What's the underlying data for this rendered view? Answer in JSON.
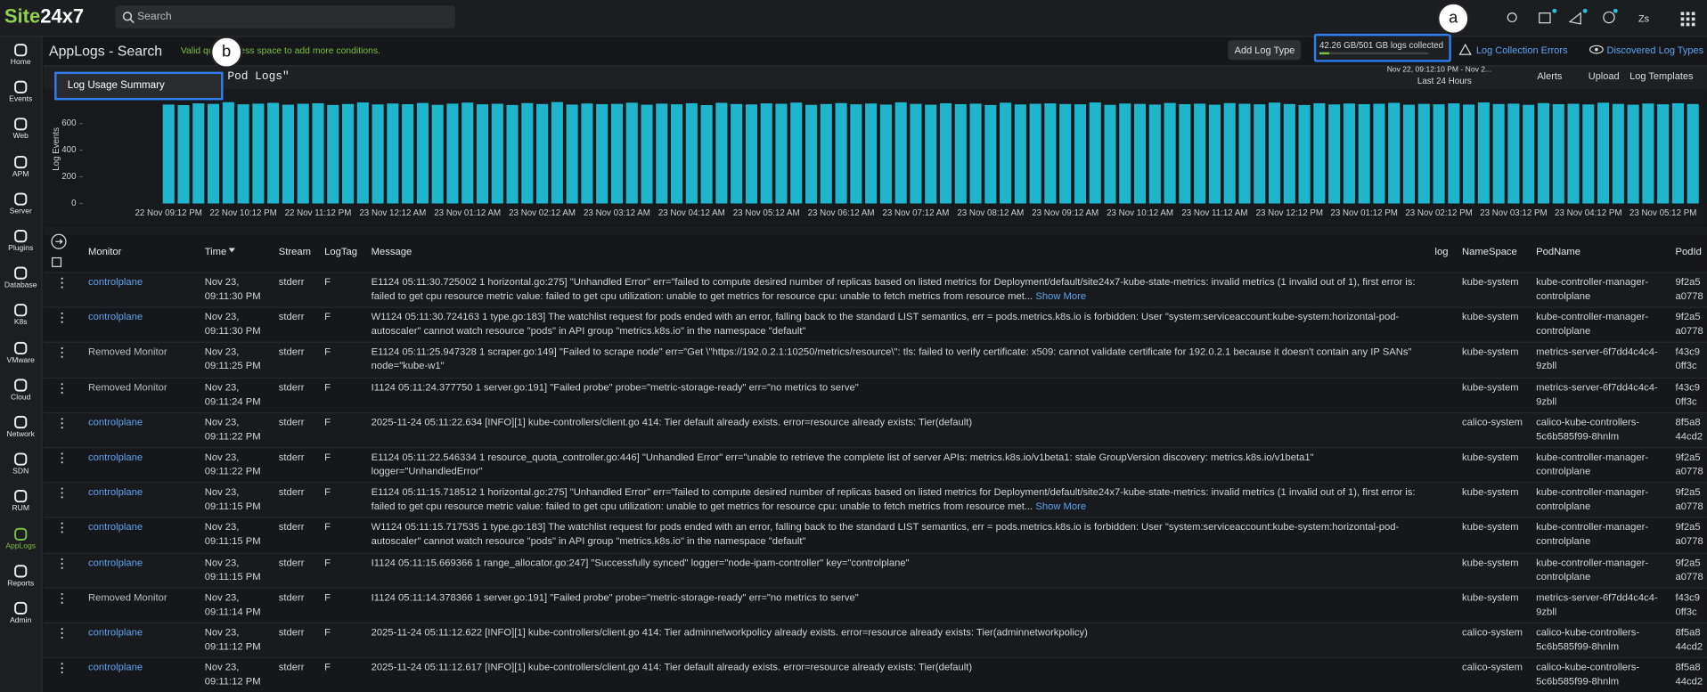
{
  "app": {
    "logo_a": "Site",
    "logo_b": "24x7",
    "search": "Search"
  },
  "sidebar": [
    "Home",
    "Events",
    "Web",
    "APM",
    "Server",
    "Plugins",
    "Database",
    "K8s",
    "VMware",
    "Cloud",
    "Network",
    "SDN",
    "RUM",
    "AppLogs",
    "Reports",
    "Admin"
  ],
  "header": {
    "title": "AppLogs - Search",
    "hint": "Valid query. Press space to add more conditions.",
    "add_log_type": "Add Log Type",
    "usage": "42.26 GB/501 GB logs collected",
    "errors": "Log Collection Errors",
    "discovered": "Discovered Log Types"
  },
  "query": {
    "text": "Pod Logs\"",
    "menu_item": "Log Usage Summary",
    "range": "Nov 22, 09:12:10 PM - Nov 2...",
    "preset": "Last 24 Hours",
    "alerts": "Alerts",
    "upload": "Upload",
    "templates": "Log Templates"
  },
  "callouts": [
    "a",
    "b"
  ],
  "chart_data": {
    "type": "bar",
    "y_label": "Log Events",
    "color": "#1fb5cc",
    "ylim": [
      0,
      800
    ],
    "yticks": [
      0,
      200,
      400,
      600
    ],
    "categories": [
      "22 Nov 09:12 PM",
      null,
      null,
      null,
      null,
      "22 Nov 10:12 PM",
      null,
      null,
      null,
      null,
      "22 Nov 11:12 PM",
      null,
      null,
      null,
      null,
      "23 Nov 12:12 AM",
      null,
      null,
      null,
      null,
      "23 Nov 01:12 AM",
      null,
      null,
      null,
      null,
      "23 Nov 02:12 AM",
      null,
      null,
      null,
      null,
      "23 Nov 03:12 AM",
      null,
      null,
      null,
      null,
      "23 Nov 04:12 AM",
      null,
      null,
      null,
      null,
      "23 Nov 05:12 AM",
      null,
      null,
      null,
      null,
      "23 Nov 06:12 AM",
      null,
      null,
      null,
      null,
      "23 Nov 07:12 AM",
      null,
      null,
      null,
      null,
      "23 Nov 08:12 AM",
      null,
      null,
      null,
      null,
      "23 Nov 09:12 AM",
      null,
      null,
      null,
      null,
      "23 Nov 10:12 AM",
      null,
      null,
      null,
      null,
      "23 Nov 11:12 AM",
      null,
      null,
      null,
      null,
      "23 Nov 12:12 PM",
      null,
      null,
      null,
      null,
      "23 Nov 01:12 PM",
      null,
      null,
      null,
      null,
      "23 Nov 02:12 PM",
      null,
      null,
      null,
      null,
      "23 Nov 03:12 PM",
      null,
      null,
      null,
      null,
      "23 Nov 04:12 PM",
      null,
      null,
      null,
      null,
      "23 Nov 05:12 PM",
      null,
      null
    ],
    "values": [
      742,
      738,
      751,
      747,
      760,
      744,
      749,
      755,
      741,
      748,
      752,
      739,
      746,
      758,
      743,
      750,
      745,
      754,
      740,
      749,
      757,
      744,
      748,
      739,
      753,
      746,
      761,
      742,
      750,
      745,
      747,
      756,
      741,
      749,
      744,
      752,
      738,
      755,
      746,
      743,
      751,
      748,
      757,
      740,
      746,
      753,
      744,
      750,
      742,
      759,
      747,
      741,
      752,
      745,
      749,
      739,
      756,
      743,
      748,
      751,
      746,
      744,
      758,
      740,
      750,
      747,
      742,
      754,
      745,
      749,
      741,
      753,
      748,
      744,
      757,
      746,
      739,
      752,
      743,
      750,
      745,
      748,
      755,
      741,
      747,
      744,
      751,
      742,
      758,
      746,
      749,
      740,
      753,
      745,
      748,
      743,
      756,
      747,
      741,
      750,
      744,
      752,
      746
    ]
  },
  "table": {
    "columns": [
      "Monitor",
      "Time",
      "Stream",
      "LogTag",
      "Message",
      "log",
      "NameSpace",
      "PodName",
      "PodId"
    ],
    "rows": [
      {
        "monitor": "controlplane",
        "time": "Nov 23, 09:11:30 PM",
        "stream": "stderr",
        "log_tag": "F",
        "message": "E1124 05:11:30.725002 1 horizontal.go:275] \"Unhandled Error\" err=\"failed to compute desired number of replicas based on listed metrics for Deployment/default/site24x7-kube-state-metrics: invalid metrics (1 invalid out of 1), first error is: failed to get cpu resource metric value: failed to get cpu utilization: unable to get metrics for resource cpu: unable to fetch metrics from resource met...",
        "more": "Show More",
        "namespace": "kube-system",
        "pod_name": "kube-controller-manager-controlplane",
        "pod_id": [
          "9f2a5",
          "a0778"
        ]
      },
      {
        "monitor": "controlplane",
        "time": "Nov 23, 09:11:30 PM",
        "stream": "stderr",
        "log_tag": "F",
        "message": "W1124 05:11:30.724163 1 type.go:183] The watchlist request for pods ended with an error, falling back to the standard LIST semantics, err = pods.metrics.k8s.io is forbidden: User \"system:serviceaccount:kube-system:horizontal-pod-autoscaler\" cannot watch resource \"pods\" in API group \"metrics.k8s.io\" in the namespace \"default\"",
        "namespace": "kube-system",
        "pod_name": "kube-controller-manager-controlplane",
        "pod_id": [
          "9f2a5",
          "a0778"
        ]
      },
      {
        "monitor": "Removed Monitor",
        "time": "Nov 23, 09:11:25 PM",
        "stream": "stderr",
        "log_tag": "F",
        "message": "E1124 05:11:25.947328 1 scraper.go:149] \"Failed to scrape node\" err=\"Get \\\"https://192.0.2.1:10250/metrics/resource\\\": tls: failed to verify certificate: x509: cannot validate certificate for 192.0.2.1 because it doesn't contain any IP SANs\" node=\"kube-w1\"",
        "namespace": "kube-system",
        "pod_name": "metrics-server-6f7dd4c4c4-9zbll",
        "pod_id": [
          "f43c9",
          "0ff3c"
        ]
      },
      {
        "monitor": "Removed Monitor",
        "time": "Nov 23, 09:11:24 PM",
        "stream": "stderr",
        "log_tag": "F",
        "message": "I1124 05:11:24.377750 1 server.go:191] \"Failed probe\" probe=\"metric-storage-ready\" err=\"no metrics to serve\"",
        "namespace": "kube-system",
        "pod_name": "metrics-server-6f7dd4c4c4-9zbll",
        "pod_id": [
          "f43c9",
          "0ff3c"
        ]
      },
      {
        "monitor": "controlplane",
        "time": "Nov 23, 09:11:22 PM",
        "stream": "stderr",
        "log_tag": "F",
        "message": "2025-11-24 05:11:22.634 [INFO][1] kube-controllers/client.go 414: Tier default already exists. error=resource already exists: Tier(default)",
        "namespace": "calico-system",
        "pod_name": "calico-kube-controllers-5c6b585f99-8hnlm",
        "pod_id": [
          "8f5a8",
          "44cd2"
        ]
      },
      {
        "monitor": "controlplane",
        "time": "Nov 23, 09:11:22 PM",
        "stream": "stderr",
        "log_tag": "F",
        "message": "E1124 05:11:22.546334 1 resource_quota_controller.go:446] \"Unhandled Error\" err=\"unable to retrieve the complete list of server APIs: metrics.k8s.io/v1beta1: stale GroupVersion discovery: metrics.k8s.io/v1beta1\" logger=\"UnhandledError\"",
        "namespace": "kube-system",
        "pod_name": "kube-controller-manager-controlplane",
        "pod_id": [
          "9f2a5",
          "a0778"
        ]
      },
      {
        "monitor": "controlplane",
        "time": "Nov 23, 09:11:15 PM",
        "stream": "stderr",
        "log_tag": "F",
        "message": "E1124 05:11:15.718512 1 horizontal.go:275] \"Unhandled Error\" err=\"failed to compute desired number of replicas based on listed metrics for Deployment/default/site24x7-kube-state-metrics: invalid metrics (1 invalid out of 1), first error is: failed to get cpu resource metric value: failed to get cpu utilization: unable to get metrics for resource cpu: unable to fetch metrics from resource met...",
        "more": "Show More",
        "namespace": "kube-system",
        "pod_name": "kube-controller-manager-controlplane",
        "pod_id": [
          "9f2a5",
          "a0778"
        ]
      },
      {
        "monitor": "controlplane",
        "time": "Nov 23, 09:11:15 PM",
        "stream": "stderr",
        "log_tag": "F",
        "message": "W1124 05:11:15.717535 1 type.go:183] The watchlist request for pods ended with an error, falling back to the standard LIST semantics, err = pods.metrics.k8s.io is forbidden: User \"system:serviceaccount:kube-system:horizontal-pod-autoscaler\" cannot watch resource \"pods\" in API group \"metrics.k8s.io\" in the namespace \"default\"",
        "namespace": "kube-system",
        "pod_name": "kube-controller-manager-controlplane",
        "pod_id": [
          "9f2a5",
          "a0778"
        ]
      },
      {
        "monitor": "controlplane",
        "time": "Nov 23, 09:11:15 PM",
        "stream": "stderr",
        "log_tag": "F",
        "message": "I1124 05:11:15.669366 1 range_allocator.go:247] \"Successfully synced\" logger=\"node-ipam-controller\" key=\"controlplane\"",
        "namespace": "kube-system",
        "pod_name": "kube-controller-manager-controlplane",
        "pod_id": [
          "9f2a5",
          "a0778"
        ]
      },
      {
        "monitor": "Removed Monitor",
        "time": "Nov 23, 09:11:14 PM",
        "stream": "stderr",
        "log_tag": "F",
        "message": "I1124 05:11:14.378366 1 server.go:191] \"Failed probe\" probe=\"metric-storage-ready\" err=\"no metrics to serve\"",
        "namespace": "kube-system",
        "pod_name": "metrics-server-6f7dd4c4c4-9zbll",
        "pod_id": [
          "f43c9",
          "0ff3c"
        ]
      },
      {
        "monitor": "controlplane",
        "time": "Nov 23, 09:11:12 PM",
        "stream": "stderr",
        "log_tag": "F",
        "message": "2025-11-24 05:11:12.622 [INFO][1] kube-controllers/client.go 414: Tier adminnetworkpolicy already exists. error=resource already exists: Tier(adminnetworkpolicy)",
        "namespace": "calico-system",
        "pod_name": "calico-kube-controllers-5c6b585f99-8hnlm",
        "pod_id": [
          "8f5a8",
          "44cd2"
        ]
      },
      {
        "monitor": "controlplane",
        "time": "Nov 23, 09:11:12 PM",
        "stream": "stderr",
        "log_tag": "F",
        "message": "2025-11-24 05:11:12.617 [INFO][1] kube-controllers/client.go 414: Tier default already exists. error=resource already exists: Tier(default)",
        "namespace": "calico-system",
        "pod_name": "calico-kube-controllers-5c6b585f99-8hnlm",
        "pod_id": [
          "8f5a8",
          "44cd2"
        ]
      }
    ]
  }
}
